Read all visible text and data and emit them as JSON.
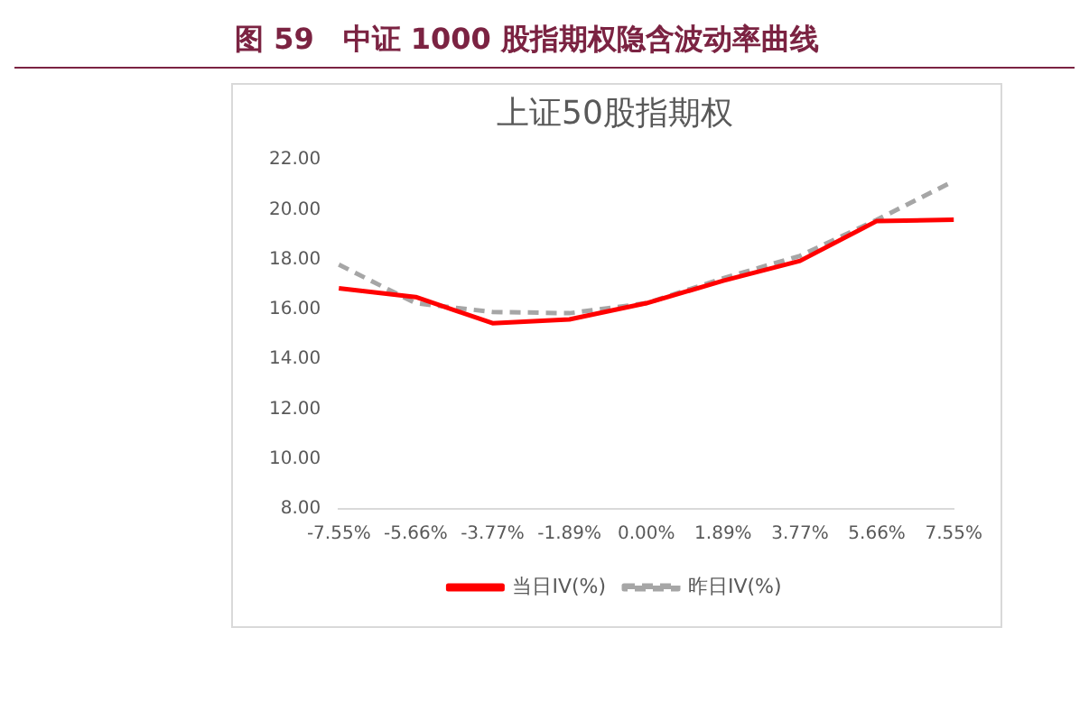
{
  "chart_data": {
    "type": "line",
    "title": "图 59　中证 1000 股指期权隐含波动率曲线",
    "subtitle": "上证50股指期权",
    "categories": [
      "-7.55%",
      "-5.66%",
      "-3.77%",
      "-1.89%",
      "0.00%",
      "1.89%",
      "3.77%",
      "5.66%",
      "7.55%"
    ],
    "series": [
      {
        "name": "当日IV(%)",
        "color": "#ff0000",
        "line_style": "solid",
        "values": [
          16.85,
          16.5,
          15.45,
          15.6,
          16.25,
          17.15,
          17.95,
          19.55,
          19.6
        ]
      },
      {
        "name": "昨日IV(%)",
        "color": "#a6a6a6",
        "line_style": "dashed",
        "values": [
          17.8,
          16.25,
          15.9,
          15.85,
          16.25,
          17.25,
          18.15,
          19.6,
          21.15
        ]
      }
    ],
    "ylim": [
      8,
      22
    ],
    "yticks": [
      {
        "value": 8,
        "label": "8.00"
      },
      {
        "value": 10,
        "label": "10.00"
      },
      {
        "value": 12,
        "label": "12.00"
      },
      {
        "value": 14,
        "label": "14.00"
      },
      {
        "value": 16,
        "label": "16.00"
      },
      {
        "value": 18,
        "label": "18.00"
      },
      {
        "value": 20,
        "label": "20.00"
      },
      {
        "value": 22,
        "label": "22.00"
      }
    ],
    "grid": false,
    "legend": "bottom",
    "marker": "none"
  }
}
